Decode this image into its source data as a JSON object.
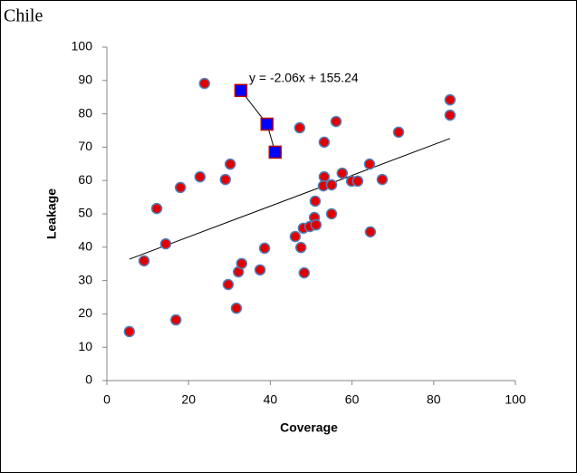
{
  "chart_data": {
    "type": "scatter",
    "title": "Chile",
    "x_label": "Coverage",
    "y_label": "Leakage",
    "annotation": "y = -2.06x + 155.24",
    "xlim": [
      0,
      100
    ],
    "ylim": [
      0,
      100
    ],
    "xticks": [
      0,
      20,
      40,
      60,
      80,
      100
    ],
    "yticks": [
      0,
      10,
      20,
      30,
      40,
      50,
      60,
      70,
      80,
      90,
      100
    ],
    "grid": false,
    "series": [
      {
        "marker": "circle",
        "color": "#e00000",
        "edge": "#4f81bd",
        "x": [
          5.5,
          9.1,
          12.2,
          14.4,
          16.9,
          18.0,
          22.8,
          23.9,
          29.0,
          29.7,
          30.2,
          31.7,
          32.2,
          33.0,
          37.5,
          38.6,
          46.1,
          47.2,
          47.5,
          48.1,
          48.3,
          49.7,
          50.8,
          51.0,
          51.2,
          53.2,
          53.2,
          53.0,
          55.0,
          55.0,
          56.1,
          57.6,
          59.9,
          61.4,
          64.3,
          64.5,
          67.4,
          71.4,
          84.0,
          84.0
        ],
        "values": [
          14.7,
          35.9,
          51.6,
          41.0,
          18.2,
          57.9,
          61.1,
          89.1,
          60.3,
          28.8,
          64.9,
          21.7,
          32.6,
          35.1,
          33.2,
          39.7,
          43.2,
          75.8,
          39.9,
          45.7,
          32.3,
          46.2,
          48.9,
          53.8,
          46.7,
          71.5,
          61.1,
          58.4,
          58.7,
          50.0,
          77.7,
          62.2,
          59.8,
          59.8,
          64.9,
          44.6,
          60.3,
          74.5,
          84.2,
          79.6
        ]
      },
      {
        "marker": "square",
        "color": "#0000ff",
        "edge": "#c00000",
        "connect": true,
        "x": [
          32.8,
          39.2,
          41.2
        ],
        "values": [
          87.0,
          76.9,
          68.5
        ]
      }
    ],
    "trendline": {
      "x": [
        5.5,
        84.0
      ],
      "values": [
        36.4,
        72.6
      ],
      "color": "#000000"
    }
  }
}
